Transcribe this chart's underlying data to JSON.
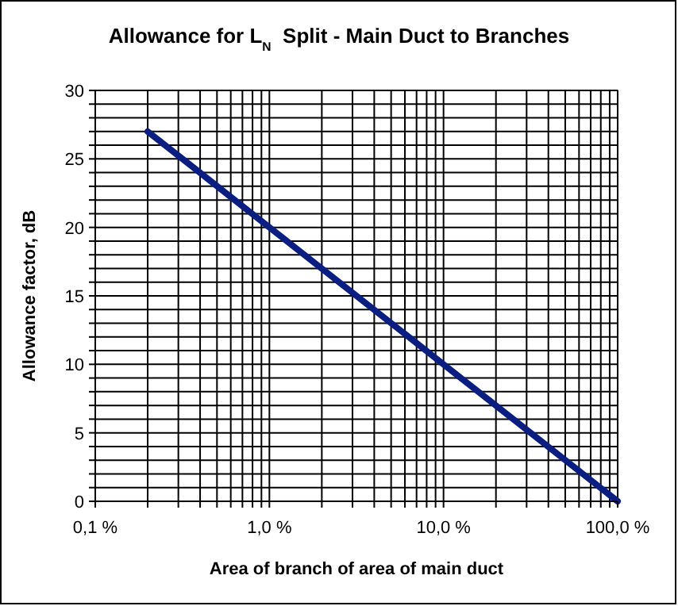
{
  "chart_data": {
    "type": "line",
    "title": "Allowance for L$_{N}$  Split - Main Duct to Branches",
    "xlabel": "Area of branch of area of main duct",
    "ylabel": "Allowance factor, dB",
    "log": "x",
    "grid": true,
    "marker": "none",
    "line_style": "solid",
    "xlim": [
      0.1,
      100
    ],
    "xticks": [
      {
        "value": 0.1,
        "label": "0,1 %"
      },
      {
        "value": 0.2,
        "label": null
      },
      {
        "value": 0.3,
        "label": null
      },
      {
        "value": 0.4,
        "label": null
      },
      {
        "value": 0.5,
        "label": null
      },
      {
        "value": 0.6,
        "label": null
      },
      {
        "value": 0.7,
        "label": null
      },
      {
        "value": 0.8,
        "label": null
      },
      {
        "value": 0.9,
        "label": null
      },
      {
        "value": 1,
        "label": "1,0 %"
      },
      {
        "value": 2,
        "label": null
      },
      {
        "value": 3,
        "label": null
      },
      {
        "value": 4,
        "label": null
      },
      {
        "value": 5,
        "label": null
      },
      {
        "value": 6,
        "label": null
      },
      {
        "value": 7,
        "label": null
      },
      {
        "value": 8,
        "label": null
      },
      {
        "value": 9,
        "label": null
      },
      {
        "value": 10,
        "label": "10,0 %"
      },
      {
        "value": 20,
        "label": null
      },
      {
        "value": 30,
        "label": null
      },
      {
        "value": 40,
        "label": null
      },
      {
        "value": 50,
        "label": null
      },
      {
        "value": 60,
        "label": null
      },
      {
        "value": 70,
        "label": null
      },
      {
        "value": 80,
        "label": null
      },
      {
        "value": 90,
        "label": null
      },
      {
        "value": 100,
        "label": "100,0 %"
      }
    ],
    "ylim": [
      0,
      30
    ],
    "yticks": [
      0,
      {
        "value": 1,
        "label": null
      },
      {
        "value": 2,
        "label": null
      },
      {
        "value": 3,
        "label": null
      },
      {
        "value": 4,
        "label": null
      },
      5,
      {
        "value": 6,
        "label": null
      },
      {
        "value": 7,
        "label": null
      },
      {
        "value": 8,
        "label": null
      },
      {
        "value": 9,
        "label": null
      },
      10,
      {
        "value": 11,
        "label": null
      },
      {
        "value": 12,
        "label": null
      },
      {
        "value": 13,
        "label": null
      },
      {
        "value": 14,
        "label": null
      },
      15,
      {
        "value": 16,
        "label": null
      },
      {
        "value": 17,
        "label": null
      },
      {
        "value": 18,
        "label": null
      },
      {
        "value": 19,
        "label": null
      },
      20,
      {
        "value": 21,
        "label": null
      },
      {
        "value": 22,
        "label": null
      },
      {
        "value": 23,
        "label": null
      },
      {
        "value": 24,
        "label": null
      },
      25,
      {
        "value": 26,
        "label": null
      },
      {
        "value": 27,
        "label": null
      },
      {
        "value": 28,
        "label": null
      },
      {
        "value": 29,
        "label": null
      },
      30
    ],
    "x": [
      0.2,
      1,
      10,
      100
    ],
    "series": [
      {
        "color": "#0a1e82",
        "values": [
          27,
          20,
          10,
          0
        ]
      }
    ]
  }
}
